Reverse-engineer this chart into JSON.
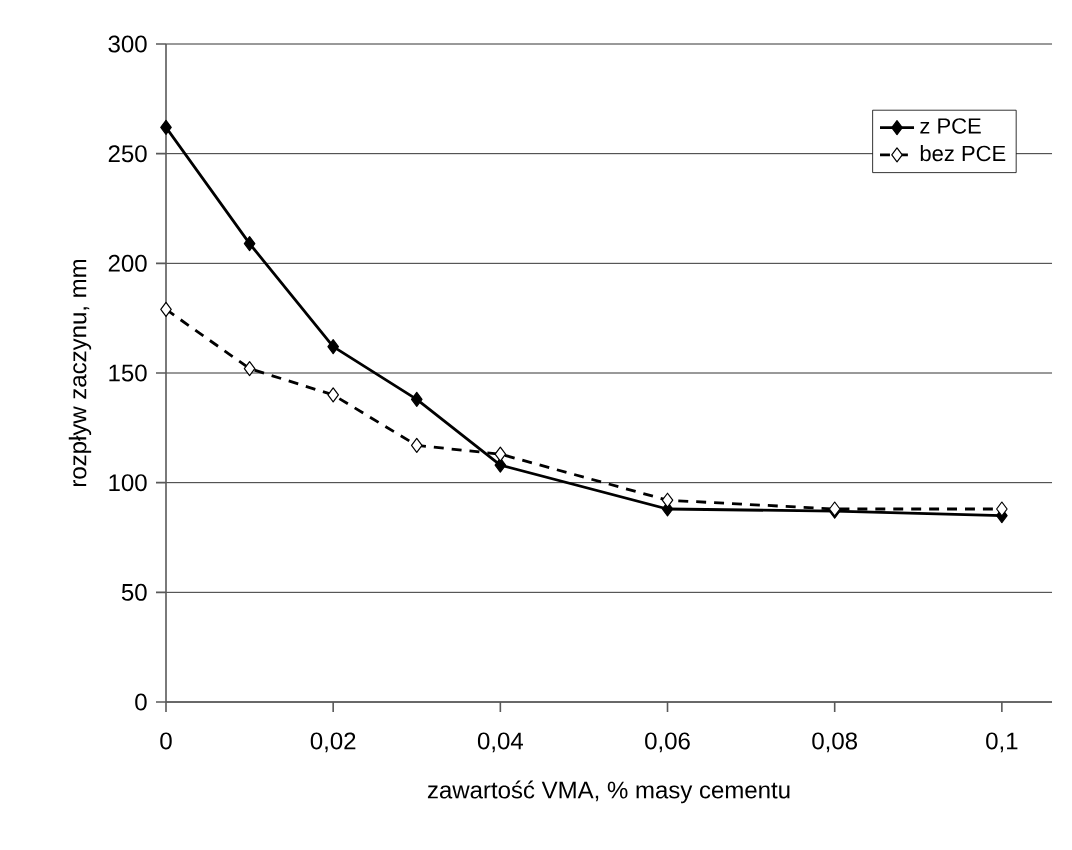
{
  "chart_data": {
    "type": "line",
    "xlabel": "zawartość VMA, % masy cementu",
    "ylabel": "rozpływ zaczynu, mm",
    "x": [
      0,
      0.01,
      0.02,
      0.03,
      0.04,
      0.06,
      0.08,
      0.1
    ],
    "series": [
      {
        "name": "z PCE",
        "color": "#000000",
        "marker": "diamond",
        "line_style": "solid",
        "values": [
          262,
          209,
          162,
          138,
          108,
          88,
          87,
          85
        ]
      },
      {
        "name": "bez PCE",
        "color": "#000000",
        "marker": "diamond",
        "line_style": "dashed",
        "values": [
          179,
          152,
          140,
          117,
          113,
          92,
          88,
          88
        ]
      }
    ],
    "xlim": [
      0,
      0.106
    ],
    "ylim": [
      0,
      300
    ],
    "xticks": [
      0,
      {
        "value": 0.02,
        "label": "0,02"
      },
      {
        "value": 0.04,
        "label": "0,04"
      },
      {
        "value": 0.06,
        "label": "0,06"
      },
      {
        "value": 0.08,
        "label": "0,08"
      },
      {
        "value": 0.1,
        "label": "0,1"
      }
    ],
    "yticks": [
      0,
      50,
      100,
      150,
      200,
      250,
      300
    ],
    "grid": "y",
    "legend": "top right"
  }
}
